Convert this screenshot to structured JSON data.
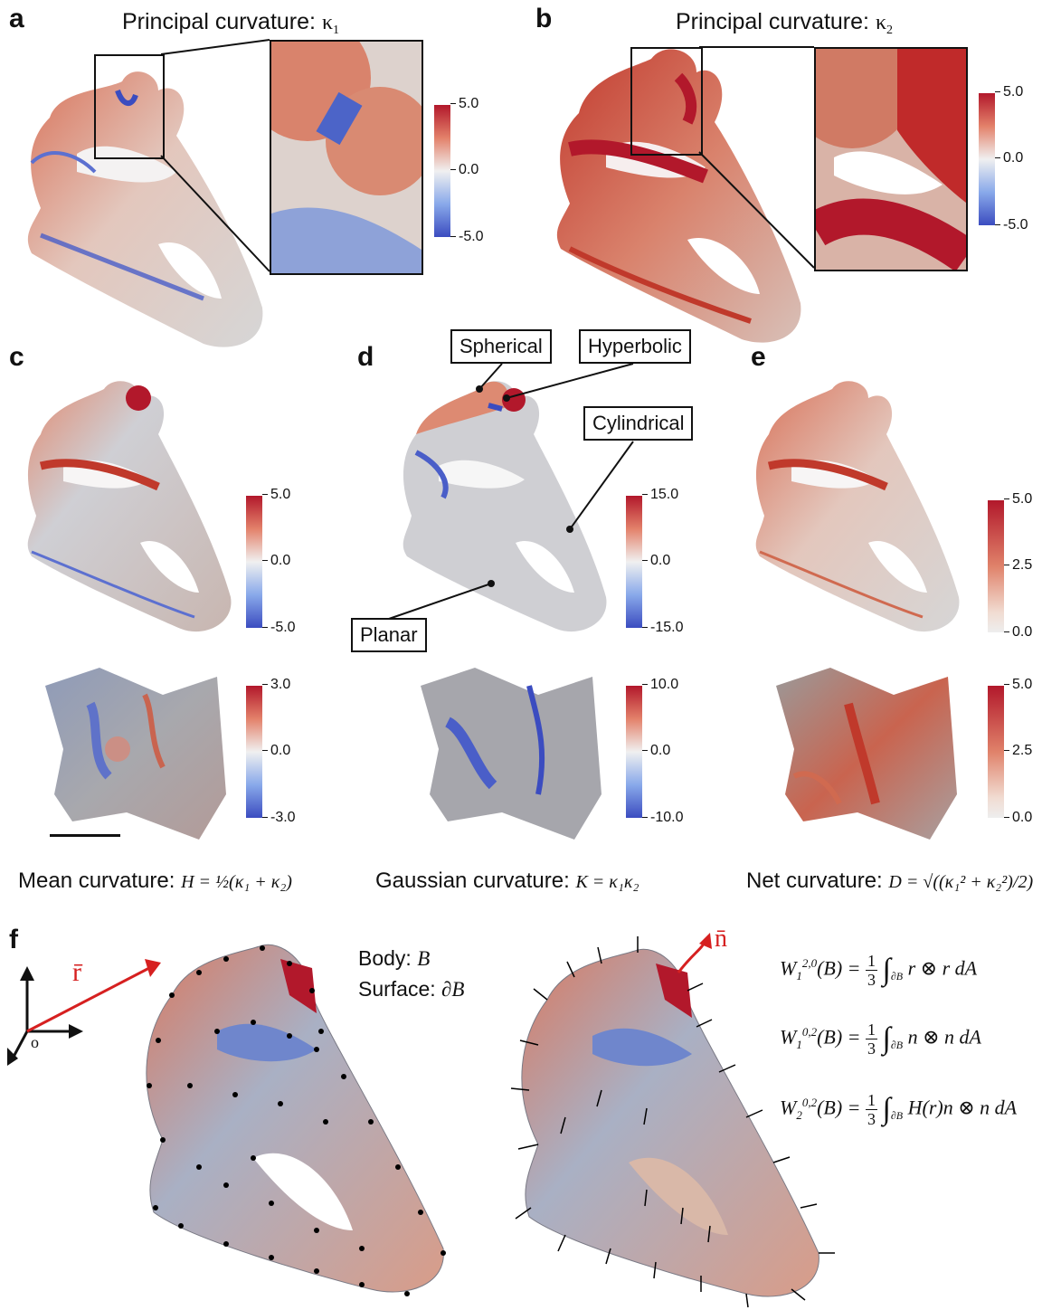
{
  "panels": {
    "a": {
      "label": "a",
      "title": "Principal curvature: ",
      "symbol": "κ",
      "sub": "1",
      "colorbar": {
        "max": "5.0",
        "mid": "0.0",
        "min": "-5.0"
      }
    },
    "b": {
      "label": "b",
      "title": "Principal curvature: ",
      "symbol": "κ",
      "sub": "2",
      "colorbar": {
        "max": "5.0",
        "mid": "0.0",
        "min": "-5.0"
      }
    },
    "c": {
      "label": "c",
      "colorbar_top": {
        "max": "5.0",
        "mid": "0.0",
        "min": "-5.0"
      },
      "colorbar_bottom": {
        "max": "3.0",
        "mid": "0.0",
        "min": "-3.0"
      },
      "caption_text": "Mean curvature:",
      "caption_math": "H = ½(κ₁ + κ₂)"
    },
    "d": {
      "label": "d",
      "annotations": {
        "spherical": "Spherical",
        "hyperbolic": "Hyperbolic",
        "cylindrical": "Cylindrical",
        "planar": "Planar"
      },
      "colorbar_top": {
        "max": "15.0",
        "mid": "0.0",
        "min": "-15.0"
      },
      "colorbar_bottom": {
        "max": "10.0",
        "mid": "0.0",
        "min": "-10.0"
      },
      "caption_text": "Gaussian curvature:",
      "caption_math": "K = κ₁κ₂"
    },
    "e": {
      "label": "e",
      "colorbar_top": {
        "max": "5.0",
        "mid": "2.5",
        "min": "0.0"
      },
      "colorbar_bottom": {
        "max": "5.0",
        "mid": "2.5",
        "min": "0.0"
      },
      "caption_text": "Net curvature:",
      "caption_math": "D = √((κ₁² + κ₂²)/2)"
    },
    "f": {
      "label": "f",
      "body_text": "Body: ",
      "body_symbol": "B",
      "surface_text": "Surface: ",
      "surface_symbol": "∂B",
      "r_label": "r̄",
      "n_label": "n̄",
      "origin_label": "o",
      "eq1": {
        "lhs": "W",
        "sub": "1",
        "sup": "2,0",
        "arg": "(B) = ",
        "num": "1",
        "den": "3",
        "domain": "∂B",
        "integrand": "r ⊗ r dA"
      },
      "eq2": {
        "lhs": "W",
        "sub": "1",
        "sup": "0,2",
        "arg": "(B) = ",
        "num": "1",
        "den": "3",
        "domain": "∂B",
        "integrand": "n ⊗ n dA"
      },
      "eq3": {
        "lhs": "W",
        "sub": "2",
        "sup": "0,2",
        "arg": "(B) = ",
        "num": "1",
        "den": "3",
        "domain": "∂B",
        "integrand": "H(r)n ⊗ n dA"
      }
    }
  },
  "colors": {
    "red": "#b2182b",
    "blue": "#3b4cc0",
    "neutral": "#dcdcdc",
    "arrow_red": "#d62020"
  }
}
